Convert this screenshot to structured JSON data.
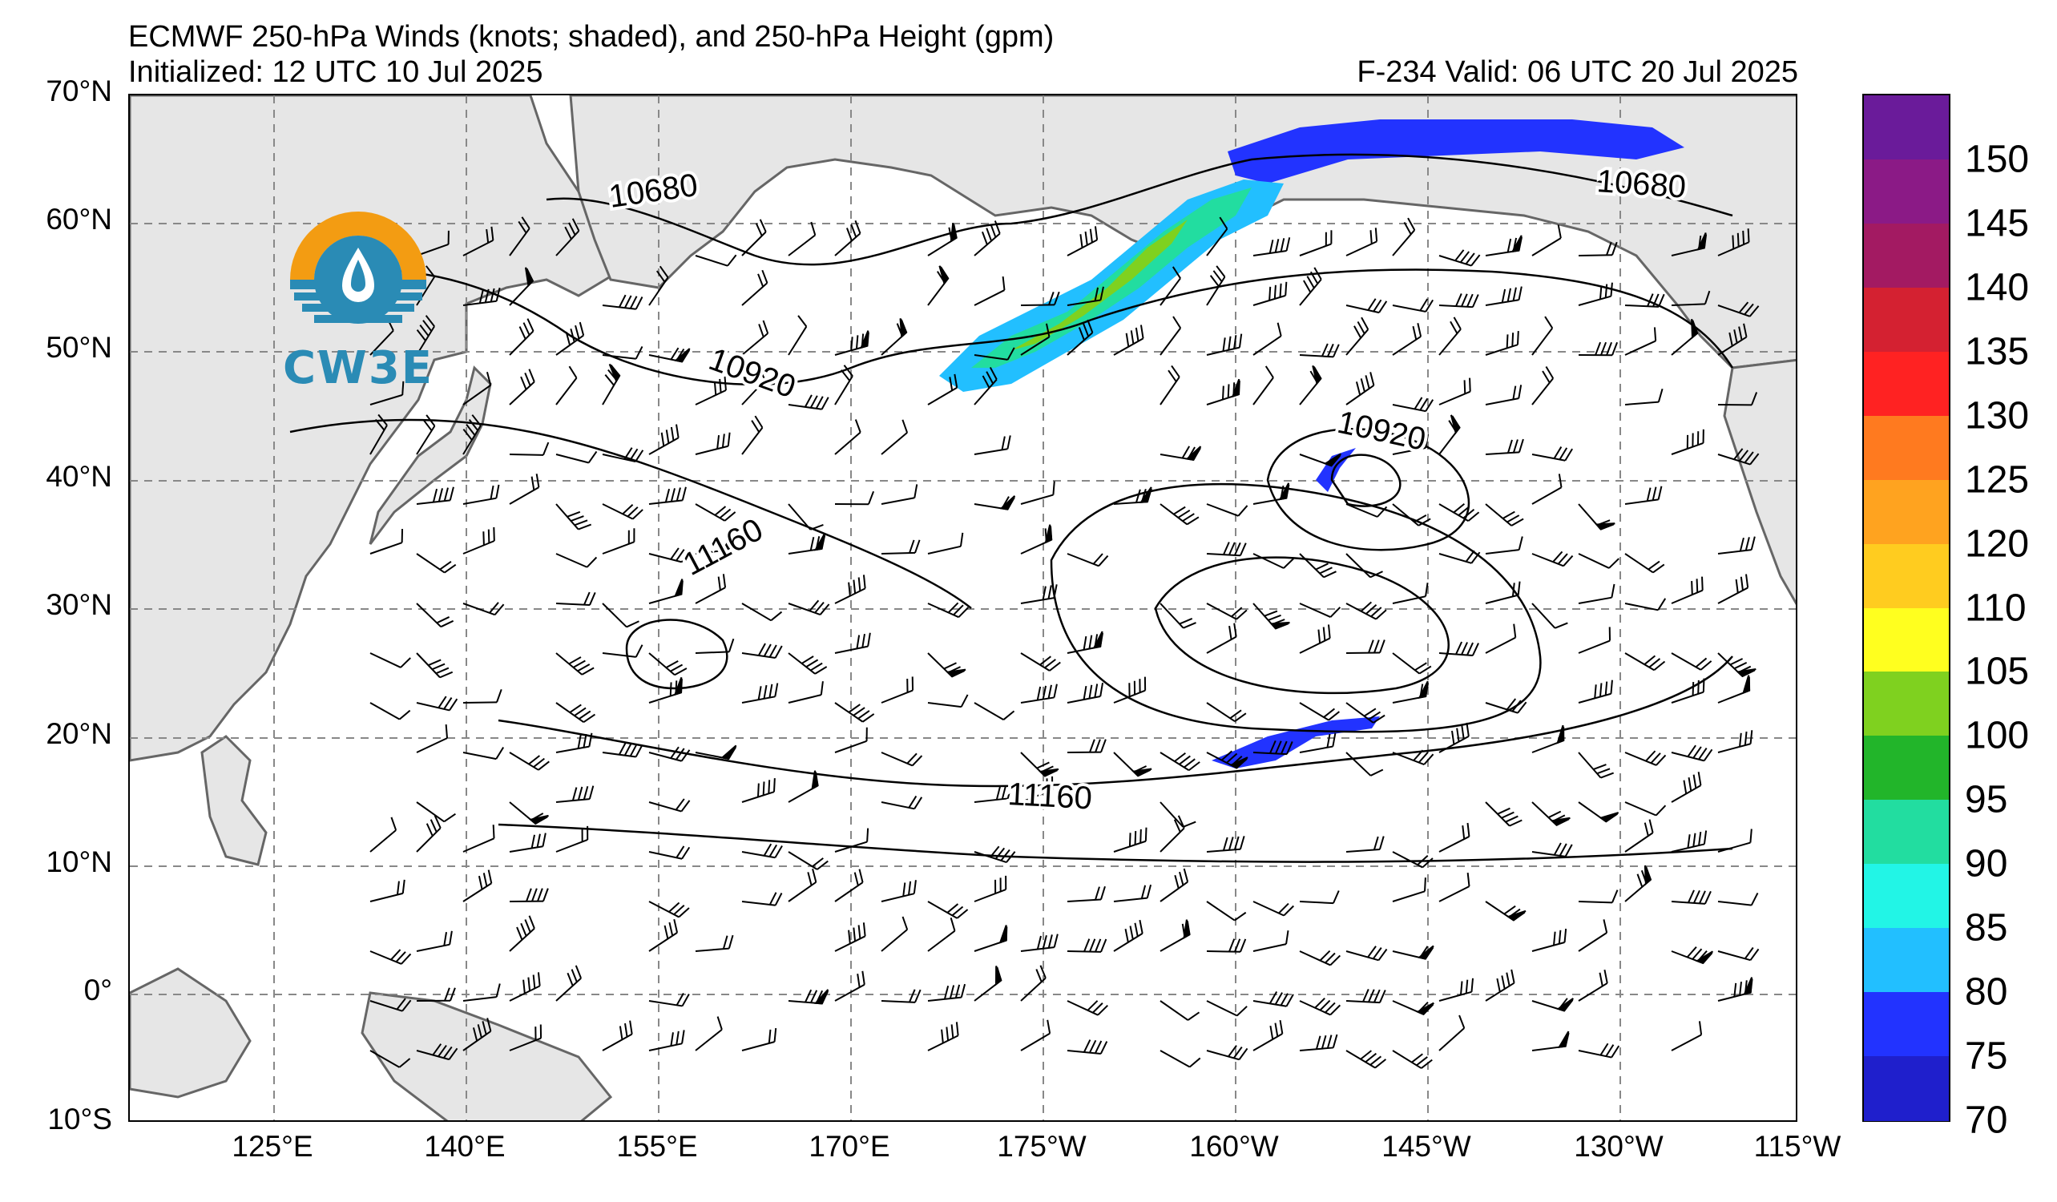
{
  "title": {
    "line1": "ECMWF 250-hPa Winds (knots; shaded), and 250-hPa Height (gpm)",
    "line2_left": "Initialized: 12 UTC 10 Jul 2025",
    "line2_right": "F-234  Valid: 06 UTC 20 Jul 2025"
  },
  "logo": {
    "text": "CW3E",
    "icon": "water-drop-sun-icon"
  },
  "lat_labels": [
    "70°N",
    "60°N",
    "50°N",
    "40°N",
    "30°N",
    "20°N",
    "10°N",
    "0°",
    "10°S"
  ],
  "lon_labels": [
    "125°E",
    "140°E",
    "155°E",
    "170°E",
    "175°W",
    "160°W",
    "145°W",
    "130°W",
    "115°W"
  ],
  "contour_labels": [
    "10680",
    "10680",
    "10920",
    "10920",
    "11160",
    "11160"
  ],
  "colorbar": {
    "labels": [
      "150",
      "145",
      "140",
      "135",
      "130",
      "125",
      "120",
      "110",
      "105",
      "100",
      "95",
      "90",
      "85",
      "80",
      "75",
      "70"
    ],
    "colors": [
      "#6a1b9a",
      "#8b1a86",
      "#a31a62",
      "#d42131",
      "#ff2222",
      "#ff7a1f",
      "#ffa31f",
      "#ffcc1f",
      "#ffff1f",
      "#7fd11f",
      "#22b52a",
      "#22dda0",
      "#22f5e6",
      "#22bfff",
      "#2233ff",
      "#1f1fcc"
    ]
  },
  "colors": {
    "land": "#e6e6e6",
    "coast": "#666666",
    "grid": "#888888",
    "jet_core": "#22dda0",
    "jet_edge": "#2233ff"
  }
}
